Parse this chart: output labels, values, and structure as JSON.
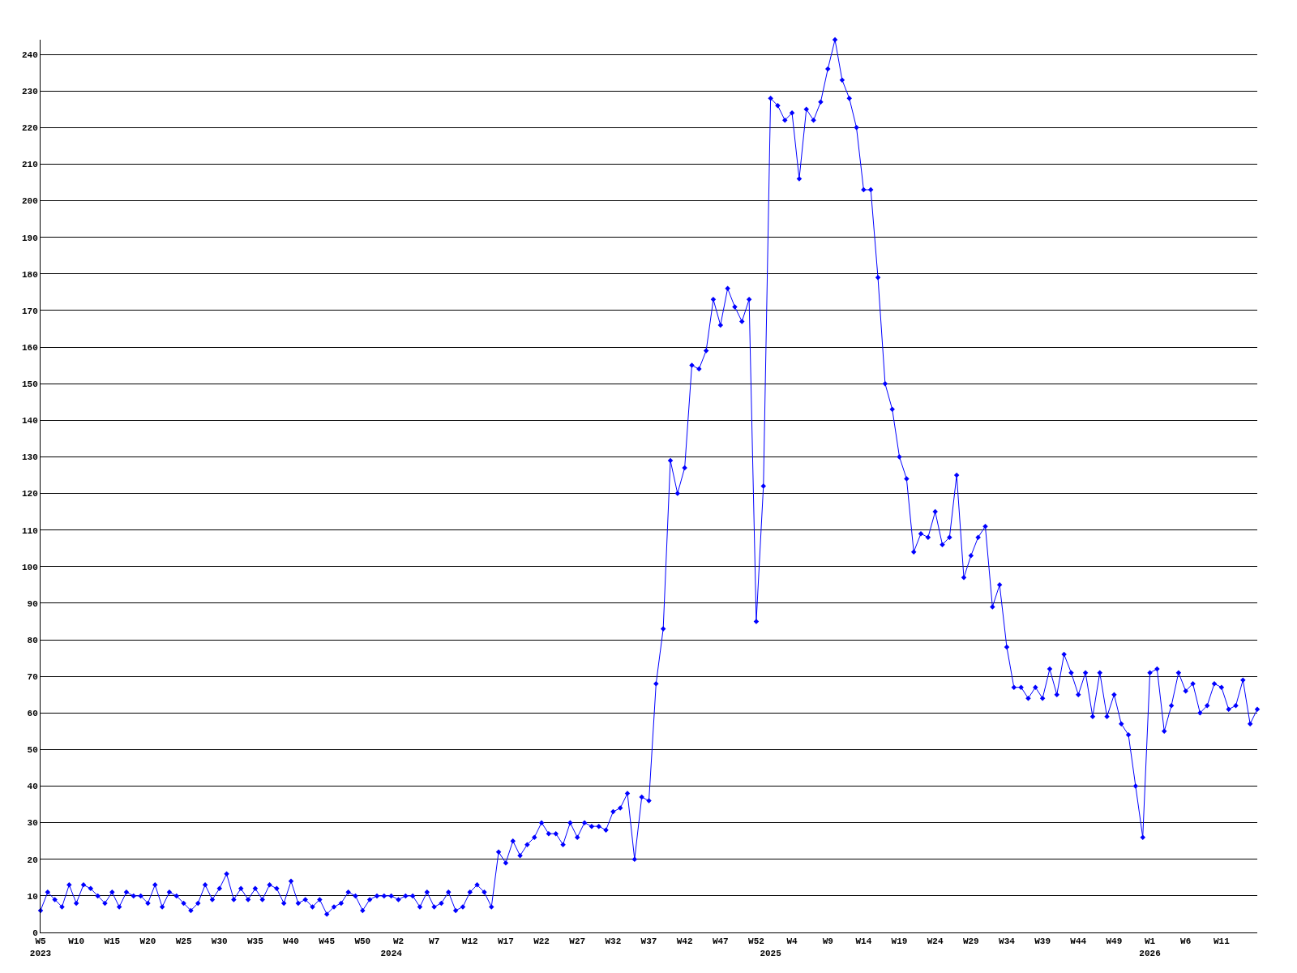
{
  "chart_data": {
    "type": "line",
    "categories": [
      "W5\n2023",
      null,
      null,
      null,
      null,
      "W10",
      null,
      null,
      null,
      null,
      "W15",
      null,
      null,
      null,
      null,
      "W20",
      null,
      null,
      null,
      null,
      "W25",
      null,
      null,
      null,
      null,
      "W30",
      null,
      null,
      null,
      null,
      "W35",
      null,
      null,
      null,
      null,
      "W40",
      null,
      null,
      null,
      null,
      "W45",
      null,
      null,
      null,
      null,
      "W50",
      null,
      null,
      null,
      "\n2024",
      "W2",
      null,
      null,
      null,
      null,
      "W7",
      null,
      null,
      null,
      null,
      "W12",
      null,
      null,
      null,
      null,
      "W17",
      null,
      null,
      null,
      null,
      "W22",
      null,
      null,
      null,
      null,
      "W27",
      null,
      null,
      null,
      null,
      "W32",
      null,
      null,
      null,
      null,
      "W37",
      null,
      null,
      null,
      null,
      "W42",
      null,
      null,
      null,
      null,
      "W47",
      null,
      null,
      null,
      null,
      "W52",
      null,
      "\n2025",
      null,
      null,
      "W4",
      null,
      null,
      null,
      null,
      "W9",
      null,
      null,
      null,
      null,
      "W14",
      null,
      null,
      null,
      null,
      "W19",
      null,
      null,
      null,
      null,
      "W24",
      null,
      null,
      null,
      null,
      "W29",
      null,
      null,
      null,
      null,
      "W34",
      null,
      null,
      null,
      null,
      "W39",
      null,
      null,
      null,
      null,
      "W44",
      null,
      null,
      null,
      null,
      "W49",
      null,
      null,
      null,
      null,
      "W1\n2026",
      null,
      null,
      null,
      null,
      "W6",
      null,
      null,
      null,
      null,
      "W11",
      null,
      null,
      null,
      null,
      null
    ],
    "series": [
      {
        "color": "#0000ff",
        "values": [
          6,
          11,
          9,
          7,
          13,
          8,
          13,
          12,
          10,
          8,
          11,
          7,
          11,
          10,
          10,
          8,
          13,
          7,
          11,
          10,
          8,
          6,
          8,
          13,
          9,
          12,
          16,
          9,
          12,
          9,
          12,
          9,
          13,
          12,
          8,
          14,
          8,
          9,
          7,
          9,
          5,
          7,
          8,
          11,
          10,
          6,
          9,
          10,
          10,
          10,
          9,
          10,
          10,
          7,
          11,
          7,
          8,
          11,
          6,
          7,
          11,
          13,
          11,
          7,
          22,
          19,
          25,
          21,
          24,
          26,
          30,
          27,
          27,
          24,
          30,
          26,
          30,
          29,
          29,
          28,
          33,
          34,
          38,
          20,
          37,
          36,
          68,
          83,
          129,
          120,
          127,
          155,
          154,
          159,
          173,
          166,
          176,
          171,
          167,
          173,
          85,
          122,
          228,
          226,
          222,
          224,
          206,
          225,
          222,
          227,
          236,
          244,
          233,
          228,
          220,
          203,
          203,
          179,
          150,
          143,
          130,
          124,
          104,
          109,
          108,
          115,
          106,
          108,
          125,
          97,
          103,
          108,
          111,
          89,
          95,
          78,
          67,
          67,
          64,
          67,
          64,
          72,
          65,
          76,
          71,
          65,
          71,
          59,
          71,
          59,
          65,
          57,
          54,
          40,
          26,
          71,
          72,
          55,
          62,
          71,
          66,
          68,
          60,
          62,
          68,
          67,
          61,
          62,
          69,
          57,
          61
        ]
      }
    ],
    "ylim": [
      0,
      244
    ],
    "yticks": [
      0,
      10,
      20,
      30,
      40,
      50,
      60,
      70,
      80,
      90,
      100,
      110,
      120,
      130,
      140,
      150,
      160,
      170,
      180,
      190,
      200,
      210,
      220,
      230,
      240
    ],
    "grid": "y",
    "marker": "diamond",
    "line_style": "solid"
  }
}
